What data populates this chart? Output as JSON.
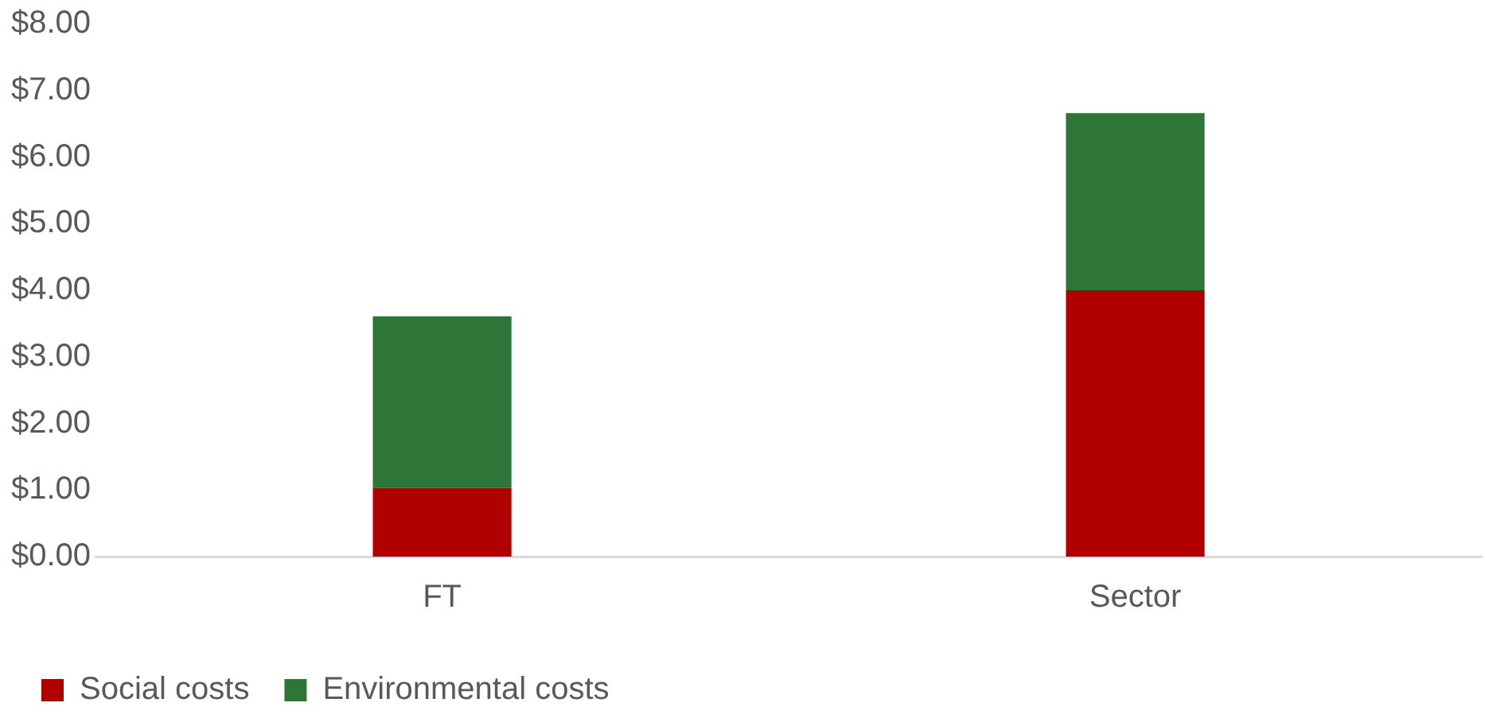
{
  "chart_data": {
    "type": "bar",
    "stacked": true,
    "categories": [
      "FT",
      "Sector"
    ],
    "series": [
      {
        "name": "Social costs",
        "color": "#b00000",
        "values": [
          1.03,
          4.0
        ]
      },
      {
        "name": "Environmental costs",
        "color": "#2e7538",
        "values": [
          2.58,
          2.66
        ]
      }
    ],
    "ylim": [
      0,
      8
    ],
    "yticks": [
      {
        "value": 0,
        "label": "$0.00"
      },
      {
        "value": 1,
        "label": "$1.00"
      },
      {
        "value": 2,
        "label": "$2.00"
      },
      {
        "value": 3,
        "label": "$3.00"
      },
      {
        "value": 4,
        "label": "$4.00"
      },
      {
        "value": 5,
        "label": "$5.00"
      },
      {
        "value": 6,
        "label": "$6.00"
      },
      {
        "value": 7,
        "label": "$7.00"
      },
      {
        "value": 8,
        "label": "$8.00"
      }
    ],
    "grid": false,
    "legend": "bottom left"
  }
}
